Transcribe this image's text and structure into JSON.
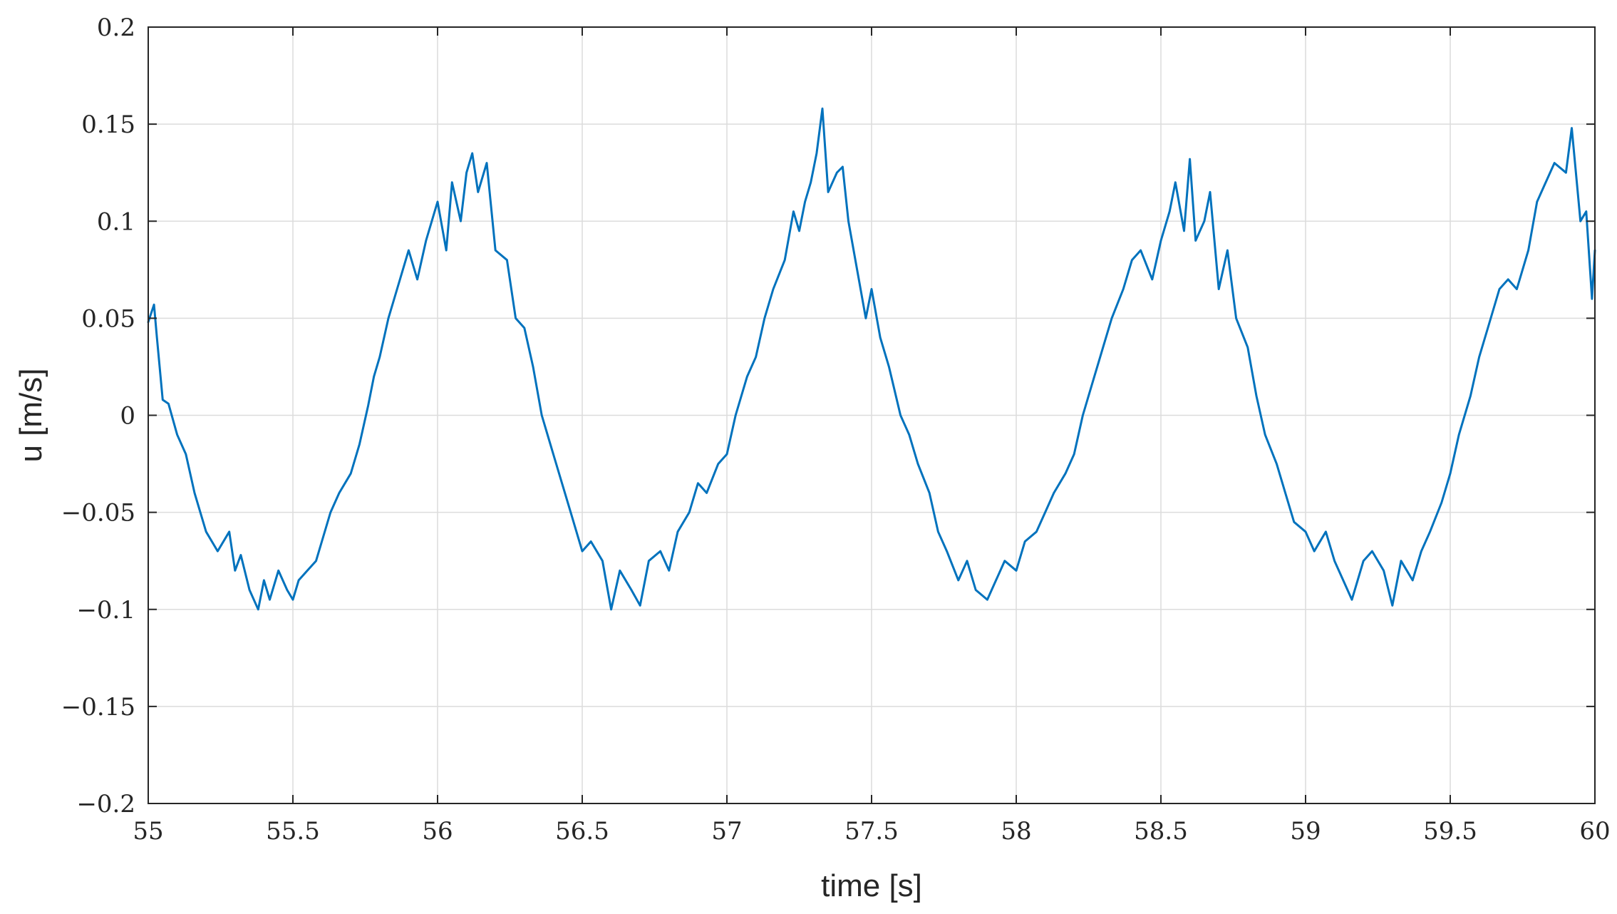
{
  "chart_data": {
    "type": "line",
    "title": "",
    "xlabel": "time [s]",
    "ylabel": "u [m/s]",
    "xlim": [
      55,
      60
    ],
    "ylim": [
      -0.2,
      0.2
    ],
    "grid": true,
    "xticks": [
      55,
      55.5,
      56,
      56.5,
      57,
      57.5,
      58,
      58.5,
      59,
      59.5,
      60
    ],
    "xtick_labels": [
      "55",
      "55.5",
      "56",
      "56.5",
      "57",
      "57.5",
      "58",
      "58.5",
      "59",
      "59.5",
      "60"
    ],
    "yticks": [
      -0.2,
      -0.15,
      -0.1,
      -0.05,
      0,
      0.05,
      0.1,
      0.15,
      0.2
    ],
    "ytick_labels": [
      "−0.2",
      "−0.15",
      "−0.1",
      "−0.05",
      "0",
      "0.05",
      "0.1",
      "0.15",
      "0.2"
    ],
    "series": [
      {
        "color": "#0072BD",
        "x": [
          55.0,
          55.02,
          55.03,
          55.05,
          55.07,
          55.1,
          55.13,
          55.16,
          55.2,
          55.24,
          55.28,
          55.3,
          55.32,
          55.35,
          55.38,
          55.4,
          55.42,
          55.45,
          55.48,
          55.5,
          55.52,
          55.55,
          55.58,
          55.6,
          55.63,
          55.66,
          55.7,
          55.73,
          55.76,
          55.78,
          55.8,
          55.83,
          55.86,
          55.9,
          55.93,
          55.96,
          55.98,
          56.0,
          56.03,
          56.05,
          56.08,
          56.1,
          56.12,
          56.14,
          56.17,
          56.2,
          56.24,
          56.27,
          56.3,
          56.33,
          56.36,
          56.4,
          56.43,
          56.46,
          56.5,
          56.53,
          56.57,
          56.6,
          56.63,
          56.67,
          56.7,
          56.73,
          56.77,
          56.8,
          56.83,
          56.87,
          56.9,
          56.93,
          56.97,
          57.0,
          57.03,
          57.07,
          57.1,
          57.13,
          57.16,
          57.2,
          57.23,
          57.25,
          57.27,
          57.29,
          57.31,
          57.33,
          57.35,
          57.38,
          57.4,
          57.42,
          57.45,
          57.48,
          57.5,
          57.53,
          57.56,
          57.6,
          57.63,
          57.66,
          57.7,
          57.73,
          57.76,
          57.8,
          57.83,
          57.86,
          57.9,
          57.93,
          57.96,
          58.0,
          58.03,
          58.07,
          58.1,
          58.13,
          58.17,
          58.2,
          58.23,
          58.27,
          58.3,
          58.33,
          58.37,
          58.4,
          58.43,
          58.47,
          58.5,
          58.53,
          58.55,
          58.58,
          58.6,
          58.62,
          58.65,
          58.67,
          58.7,
          58.73,
          58.76,
          58.8,
          58.83,
          58.86,
          58.9,
          58.93,
          58.96,
          59.0,
          59.03,
          59.07,
          59.1,
          59.13,
          59.16,
          59.2,
          59.23,
          59.27,
          59.3,
          59.33,
          59.37,
          59.4,
          59.43,
          59.47,
          59.5,
          59.53,
          59.57,
          59.6,
          59.63,
          59.67,
          59.7,
          59.73,
          59.77,
          59.8,
          59.83,
          59.86,
          59.9,
          59.92,
          59.95,
          59.97,
          59.99,
          60.0
        ],
        "y": [
          0.048,
          0.057,
          0.04,
          0.008,
          0.006,
          -0.01,
          -0.02,
          -0.04,
          -0.06,
          -0.07,
          -0.06,
          -0.08,
          -0.072,
          -0.09,
          -0.1,
          -0.085,
          -0.095,
          -0.08,
          -0.09,
          -0.095,
          -0.085,
          -0.08,
          -0.075,
          -0.065,
          -0.05,
          -0.04,
          -0.03,
          -0.015,
          0.005,
          0.02,
          0.03,
          0.05,
          0.065,
          0.085,
          0.07,
          0.09,
          0.1,
          0.11,
          0.085,
          0.12,
          0.1,
          0.125,
          0.135,
          0.115,
          0.13,
          0.085,
          0.08,
          0.05,
          0.045,
          0.025,
          0.0,
          -0.02,
          -0.035,
          -0.05,
          -0.07,
          -0.065,
          -0.075,
          -0.1,
          -0.08,
          -0.09,
          -0.098,
          -0.075,
          -0.07,
          -0.08,
          -0.06,
          -0.05,
          -0.035,
          -0.04,
          -0.025,
          -0.02,
          0.0,
          0.02,
          0.03,
          0.05,
          0.065,
          0.08,
          0.105,
          0.095,
          0.11,
          0.12,
          0.135,
          0.158,
          0.115,
          0.125,
          0.128,
          0.1,
          0.075,
          0.05,
          0.065,
          0.04,
          0.025,
          0.0,
          -0.01,
          -0.025,
          -0.04,
          -0.06,
          -0.07,
          -0.085,
          -0.075,
          -0.09,
          -0.095,
          -0.085,
          -0.075,
          -0.08,
          -0.065,
          -0.06,
          -0.05,
          -0.04,
          -0.03,
          -0.02,
          0.0,
          0.02,
          0.035,
          0.05,
          0.065,
          0.08,
          0.085,
          0.07,
          0.09,
          0.105,
          0.12,
          0.095,
          0.132,
          0.09,
          0.1,
          0.115,
          0.065,
          0.085,
          0.05,
          0.035,
          0.01,
          -0.01,
          -0.025,
          -0.04,
          -0.055,
          -0.06,
          -0.07,
          -0.06,
          -0.075,
          -0.085,
          -0.095,
          -0.075,
          -0.07,
          -0.08,
          -0.098,
          -0.075,
          -0.085,
          -0.07,
          -0.06,
          -0.045,
          -0.03,
          -0.01,
          0.01,
          0.03,
          0.045,
          0.065,
          0.07,
          0.065,
          0.085,
          0.11,
          0.12,
          0.13,
          0.125,
          0.148,
          0.1,
          0.105,
          0.06,
          0.085
        ]
      }
    ]
  }
}
